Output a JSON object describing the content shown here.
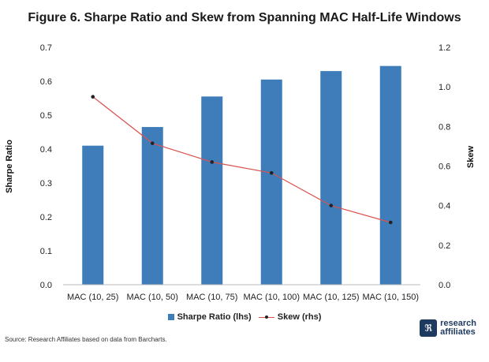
{
  "chart_data": {
    "type": "bar",
    "title": "Figure 6. Sharpe Ratio and Skew from Spanning MAC Half-Life Windows",
    "categories": [
      "MAC (10, 25)",
      "MAC (10, 50)",
      "MAC (10, 75)",
      "MAC (10, 100)",
      "MAC (10, 125)",
      "MAC (10, 150)"
    ],
    "series": [
      {
        "name": "Sharpe Ratio (lhs)",
        "type": "bar",
        "axis": "left",
        "color": "#3e7dba",
        "values": [
          0.41,
          0.465,
          0.555,
          0.605,
          0.63,
          0.645
        ]
      },
      {
        "name": "Skew (rhs)",
        "type": "line",
        "axis": "right",
        "color": "#d9534f",
        "marker_color": "#222222",
        "values": [
          0.95,
          0.715,
          0.62,
          0.565,
          0.4,
          0.315
        ]
      }
    ],
    "ylabel": "Sharpe Ratio",
    "y2label": "Skew",
    "ylim": [
      0,
      0.7
    ],
    "y2lim": [
      0,
      1.2
    ],
    "yticks": [
      "0.0",
      "0.1",
      "0.2",
      "0.3",
      "0.4",
      "0.5",
      "0.6",
      "0.7"
    ],
    "y2ticks": [
      "0.0",
      "0.2",
      "0.4",
      "0.6",
      "0.8",
      "1.0",
      "1.2"
    ],
    "grid": false,
    "legend_position": "bottom"
  },
  "footer": {
    "source": "Source: Research Affiliates based on data from Barcharts.",
    "logo_icon": "research-affiliates-logo-icon",
    "logo_line1": "research",
    "logo_line2": "affiliates",
    "logo_color": "#1f3a5f"
  }
}
